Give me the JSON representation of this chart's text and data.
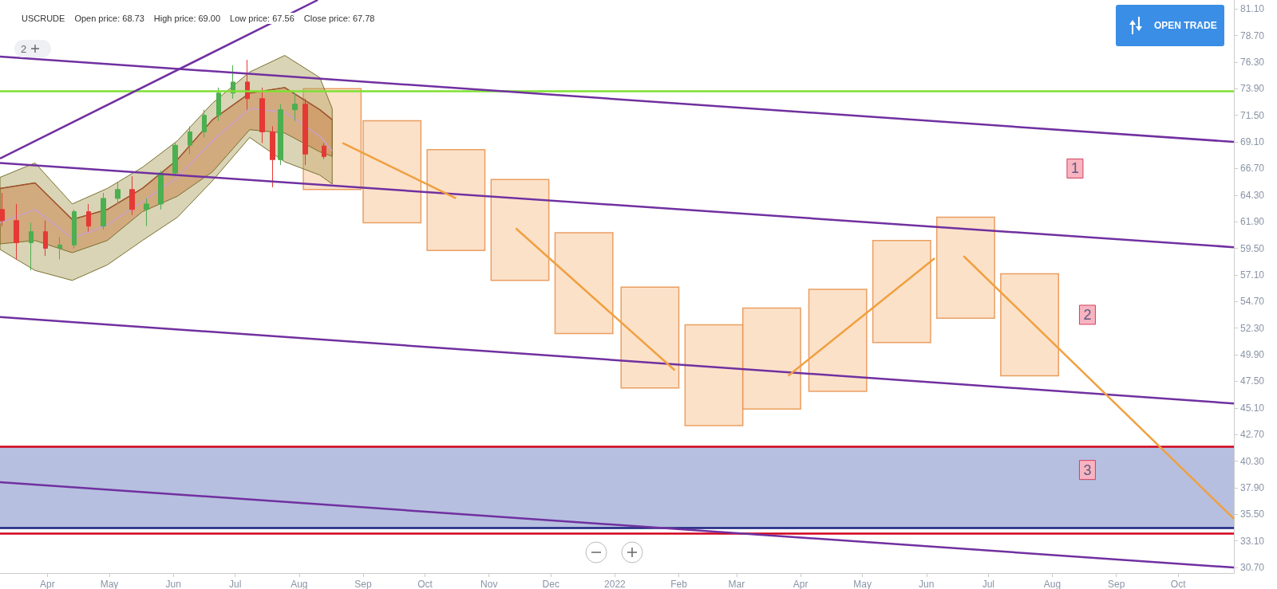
{
  "chart_data": {
    "type": "candlestick",
    "title": "USCRUDE",
    "annotations": [
      "Open price: 68.73",
      "High price: 69.00",
      "Low price: 67.56",
      "Close price: 67.78",
      "OPEN TRADE",
      "2",
      {
        "text": "1",
        "x": "2022-08-12",
        "y": 66.7
      },
      {
        "text": "2",
        "x": "2022-08-18",
        "y": 53.5
      },
      {
        "text": "3",
        "x": "2022-08-18",
        "y": 39.5
      }
    ],
    "xlim": [
      "2021-03-09",
      "2022-10-28"
    ],
    "xticks": [
      {
        "value": "2021-04-01",
        "label": "Apr"
      },
      {
        "value": "2021-05-01",
        "label": "May"
      },
      {
        "value": "2021-06-01",
        "label": "Jun"
      },
      {
        "value": "2021-07-01",
        "label": "Jul"
      },
      {
        "value": "2021-08-01",
        "label": "Aug"
      },
      {
        "value": "2021-09-01",
        "label": "Sep"
      },
      {
        "value": "2021-10-01",
        "label": "Oct"
      },
      {
        "value": "2021-11-01",
        "label": "Nov"
      },
      {
        "value": "2021-12-01",
        "label": "Dec"
      },
      {
        "value": "2022-01-01",
        "label": "2022"
      },
      {
        "value": "2022-02-01",
        "label": "Feb"
      },
      {
        "value": "2022-03-01",
        "label": "Mar"
      },
      {
        "value": "2022-04-01",
        "label": "Apr"
      },
      {
        "value": "2022-05-01",
        "label": "May"
      },
      {
        "value": "2022-06-01",
        "label": "Jun"
      },
      {
        "value": "2022-07-01",
        "label": "Jul"
      },
      {
        "value": "2022-08-01",
        "label": "Aug"
      },
      {
        "value": "2022-09-01",
        "label": "Sep"
      },
      {
        "value": "2022-10-01",
        "label": "Oct"
      }
    ],
    "ylim": [
      30.2,
      81.9
    ],
    "yticks": [
      {
        "value": 30.7,
        "label": "30.70"
      },
      {
        "value": 33.1,
        "label": "33.10"
      },
      {
        "value": 35.5,
        "label": "35.50"
      },
      {
        "value": 37.9,
        "label": "37.90"
      },
      {
        "value": 40.3,
        "label": "40.30"
      },
      {
        "value": 42.7,
        "label": "42.70"
      },
      {
        "value": 45.1,
        "label": "45.10"
      },
      {
        "value": 47.5,
        "label": "47.50"
      },
      {
        "value": 49.9,
        "label": "49.90"
      },
      {
        "value": 52.3,
        "label": "52.30"
      },
      {
        "value": 54.7,
        "label": "54.70"
      },
      {
        "value": 57.1,
        "label": "57.10"
      },
      {
        "value": 59.5,
        "label": "59.50"
      },
      {
        "value": 61.9,
        "label": "61.90"
      },
      {
        "value": 64.3,
        "label": "64.30"
      },
      {
        "value": 66.7,
        "label": "66.70"
      },
      {
        "value": 69.1,
        "label": "69.10"
      },
      {
        "value": 71.5,
        "label": "71.50"
      },
      {
        "value": 73.9,
        "label": "73.90"
      },
      {
        "value": 76.3,
        "label": "76.30"
      },
      {
        "value": 78.7,
        "label": "78.70"
      },
      {
        "value": 81.1,
        "label": "81.10"
      }
    ],
    "marker": "none",
    "ref_lines": [
      {
        "axis": "y",
        "value": 73.7,
        "color": "#7ee032"
      },
      {
        "axis": "y",
        "value": 41.6,
        "color": "#d0021b"
      },
      {
        "axis": "y",
        "value": 34.3,
        "color": "#1a237e"
      },
      {
        "axis": "y",
        "value": 33.8,
        "color": "#d0021b"
      }
    ],
    "bands": [
      {
        "axis": "y",
        "from": 34.3,
        "to": 41.6,
        "color": "#b6bfdf"
      }
    ],
    "series": [
      {
        "type": "line",
        "color": "#c9a0c9",
        "x": [
          "2021-03-09",
          "2021-03-26",
          "2021-04-13",
          "2021-04-30",
          "2021-05-17",
          "2021-06-03",
          "2021-06-20",
          "2021-07-08",
          "2021-07-25",
          "2021-08-11",
          "2021-08-17"
        ],
        "values": [
          61.8,
          63.0,
          60.4,
          61.6,
          63.7,
          65.9,
          69.2,
          72.1,
          71.8,
          69.6,
          68.3
        ],
        "lower": [
          59.4,
          57.5,
          56.6,
          58.0,
          60.2,
          62.3,
          65.6,
          69.5,
          67.3,
          66.1,
          65.3
        ],
        "upper": [
          65.9,
          67.2,
          63.5,
          64.9,
          66.8,
          69.2,
          72.6,
          75.4,
          76.9,
          74.9,
          72.1
        ]
      },
      {
        "type": "line",
        "color": "#a0522d",
        "x": [
          "2021-03-09",
          "2021-03-26",
          "2021-04-13",
          "2021-04-30",
          "2021-05-17",
          "2021-06-03",
          "2021-06-20",
          "2021-07-08",
          "2021-07-25",
          "2021-08-11",
          "2021-08-17"
        ],
        "values": [
          64.9,
          65.4,
          62.1,
          63.0,
          64.9,
          67.5,
          71.1,
          73.5,
          74.0,
          72.0,
          71.1
        ],
        "lower": [
          59.9,
          60.2,
          59.1,
          60.2,
          62.8,
          64.2,
          66.4,
          70.2,
          69.9,
          68.2,
          67.8
        ],
        "upper": [
          64.9,
          65.4,
          62.1,
          63.0,
          64.9,
          67.5,
          71.1,
          73.5,
          74.0,
          72.0,
          71.1
        ]
      },
      {
        "x": [
          "2021-03-10",
          "2021-03-17",
          "2021-03-24",
          "2021-03-31",
          "2021-04-07",
          "2021-04-14",
          "2021-04-21",
          "2021-04-28",
          "2021-05-05",
          "2021-05-12",
          "2021-05-19",
          "2021-05-26",
          "2021-06-02",
          "2021-06-09",
          "2021-06-16",
          "2021-06-23",
          "2021-06-30",
          "2021-07-07",
          "2021-07-14",
          "2021-07-19",
          "2021-07-23",
          "2021-07-30",
          "2021-08-04",
          "2021-08-13"
        ],
        "ohlc": [
          [
            63.0,
            64.5,
            61.5,
            62.0
          ],
          [
            62.0,
            63.5,
            58.5,
            60.0
          ],
          [
            60.0,
            61.8,
            57.5,
            61.0
          ],
          [
            61.0,
            62.0,
            58.8,
            59.5
          ],
          [
            59.5,
            60.5,
            58.5,
            59.8
          ],
          [
            59.8,
            63.0,
            59.5,
            62.8
          ],
          [
            62.8,
            63.5,
            61.0,
            61.5
          ],
          [
            61.5,
            64.5,
            61.2,
            64.0
          ],
          [
            64.0,
            65.5,
            63.5,
            64.8
          ],
          [
            64.8,
            66.0,
            62.5,
            63.0
          ],
          [
            63.0,
            64.0,
            61.5,
            63.5
          ],
          [
            63.5,
            66.5,
            63.0,
            66.3
          ],
          [
            66.3,
            69.0,
            66.0,
            68.8
          ],
          [
            68.8,
            70.5,
            68.0,
            70.0
          ],
          [
            70.0,
            72.0,
            69.5,
            71.5
          ],
          [
            71.5,
            74.0,
            71.0,
            73.5
          ],
          [
            73.5,
            76.0,
            73.0,
            74.5
          ],
          [
            74.5,
            76.5,
            72.0,
            73.0
          ],
          [
            73.0,
            74.0,
            69.0,
            70.0
          ],
          [
            70.0,
            70.5,
            65.0,
            67.5
          ],
          [
            67.5,
            72.5,
            67.0,
            72.0
          ],
          [
            72.0,
            73.5,
            71.0,
            72.5
          ],
          [
            72.5,
            73.0,
            67.0,
            68.0
          ],
          [
            68.73,
            69.0,
            67.56,
            67.78
          ]
        ]
      },
      {
        "type": "bar",
        "color": "#fbdcc0",
        "x": [
          "2021-08-17",
          "2021-09-15",
          "2021-10-16",
          "2021-11-16",
          "2021-12-17",
          "2022-01-18",
          "2022-02-18",
          "2022-03-18",
          "2022-04-19",
          "2022-05-20",
          "2022-06-20",
          "2022-07-21"
        ],
        "base": [
          64.8,
          61.8,
          59.3,
          56.6,
          51.8,
          46.9,
          43.5,
          45.0,
          46.6,
          51.0,
          53.2,
          48.0
        ],
        "values": [
          9.1,
          9.2,
          9.1,
          9.1,
          9.1,
          9.1,
          9.1,
          9.1,
          9.2,
          9.2,
          9.1,
          9.2
        ]
      },
      {
        "type": "line",
        "color": "#7030a0",
        "x": [
          "2021-03-09",
          "2022-10-28"
        ],
        "values": [
          76.8,
          69.1
        ]
      },
      {
        "type": "line",
        "color": "#7030a0",
        "x": [
          "2021-03-09",
          "2022-10-28"
        ],
        "values": [
          67.2,
          59.6
        ]
      },
      {
        "type": "line",
        "color": "#7030a0",
        "x": [
          "2021-03-09",
          "2022-10-28"
        ],
        "values": [
          53.3,
          45.5
        ]
      },
      {
        "type": "line",
        "color": "#7030a0",
        "x": [
          "2021-03-09",
          "2022-10-28"
        ],
        "values": [
          38.4,
          30.7
        ]
      },
      {
        "type": "line",
        "color": "#7030a0",
        "x": [
          "2021-03-09",
          "2021-08-10"
        ],
        "values": [
          67.6,
          81.9
        ]
      },
      {
        "type": "line",
        "color": "#f0a040",
        "x": [
          "2021-08-22",
          "2021-10-16"
        ],
        "values": [
          69.0,
          64.0
        ]
      },
      {
        "type": "line",
        "color": "#f0a040",
        "x": [
          "2021-11-14",
          "2022-01-30"
        ],
        "values": [
          61.3,
          48.5
        ]
      },
      {
        "type": "line",
        "color": "#f0a040",
        "x": [
          "2022-03-26",
          "2022-06-05"
        ],
        "values": [
          48.0,
          58.6
        ]
      },
      {
        "type": "line",
        "color": "#f0a040",
        "x": [
          "2022-06-19",
          "2022-10-28"
        ],
        "values": [
          58.8,
          35.1
        ]
      }
    ]
  }
}
